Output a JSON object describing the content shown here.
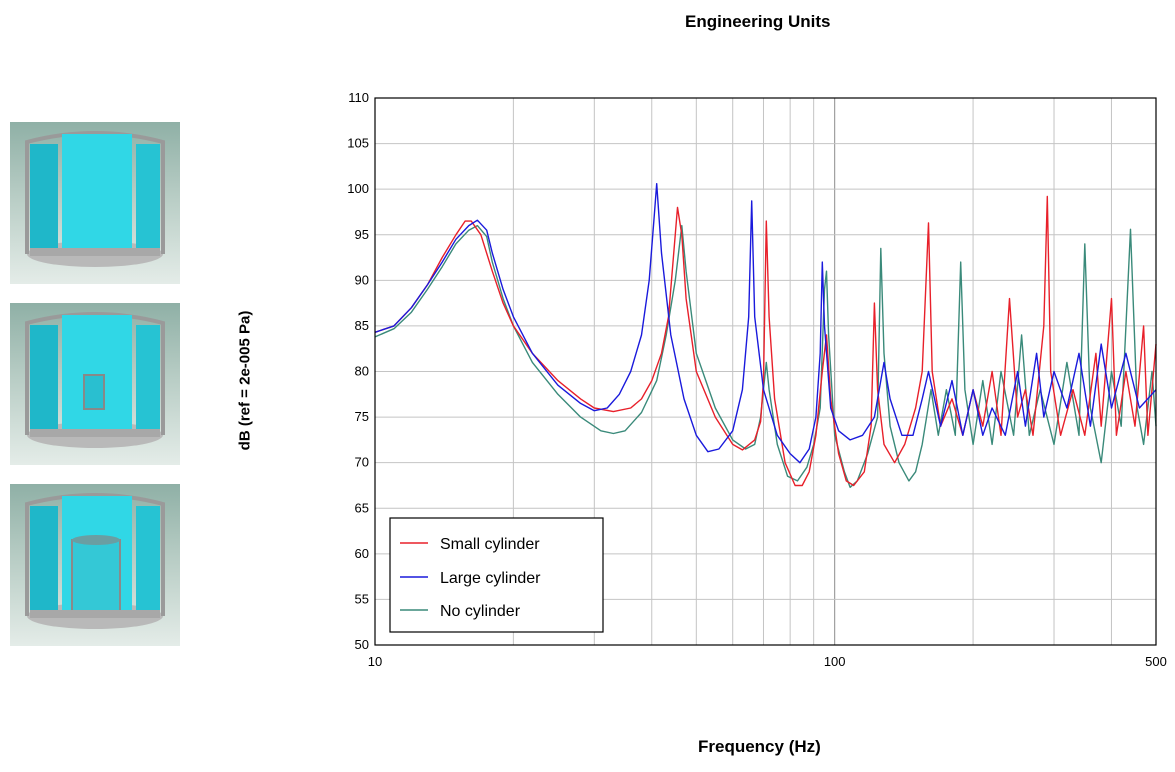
{
  "chart_data": {
    "type": "line",
    "title": "Engineering Units",
    "xlabel": "Frequency (Hz)",
    "ylabel": "dB (ref = 2e-005 Pa)",
    "xscale": "log",
    "xlim": [
      10,
      500
    ],
    "ylim": [
      50,
      110
    ],
    "x_tick_labels": [
      "10",
      "100",
      "500"
    ],
    "y_tick_labels": [
      "50",
      "55",
      "60",
      "65",
      "70",
      "75",
      "80",
      "85",
      "90",
      "95",
      "100",
      "105",
      "110"
    ],
    "grid": true,
    "legend_position": "bottom-left",
    "series": [
      {
        "name": "Small cylinder",
        "color": "#e8202a",
        "points": [
          [
            10,
            84.3
          ],
          [
            11,
            85
          ],
          [
            12,
            87
          ],
          [
            13,
            89.5
          ],
          [
            14,
            92.5
          ],
          [
            15,
            95
          ],
          [
            15.7,
            96.5
          ],
          [
            16.2,
            96.5
          ],
          [
            17,
            95
          ],
          [
            18,
            91
          ],
          [
            19,
            87.5
          ],
          [
            20,
            85
          ],
          [
            22,
            82
          ],
          [
            25,
            79
          ],
          [
            28,
            77
          ],
          [
            30,
            76
          ],
          [
            33,
            75.6
          ],
          [
            36,
            76
          ],
          [
            38,
            77
          ],
          [
            40,
            79
          ],
          [
            42,
            82
          ],
          [
            43.5,
            86
          ],
          [
            44.5,
            92
          ],
          [
            45.5,
            98
          ],
          [
            46.5,
            95
          ],
          [
            47.5,
            88
          ],
          [
            50,
            80
          ],
          [
            55,
            75
          ],
          [
            60,
            72
          ],
          [
            63,
            71.4
          ],
          [
            67,
            72.5
          ],
          [
            69,
            74.5
          ],
          [
            70,
            79
          ],
          [
            71,
            96.5
          ],
          [
            72,
            86
          ],
          [
            74,
            77
          ],
          [
            78,
            70
          ],
          [
            82,
            67.5
          ],
          [
            85,
            67.5
          ],
          [
            88,
            69
          ],
          [
            91,
            73
          ],
          [
            94,
            80
          ],
          [
            96,
            84
          ],
          [
            98,
            77
          ],
          [
            102,
            71
          ],
          [
            106,
            68
          ],
          [
            110,
            67.5
          ],
          [
            116,
            69
          ],
          [
            120,
            74
          ],
          [
            122,
            87.5
          ],
          [
            124,
            78
          ],
          [
            128,
            72
          ],
          [
            135,
            70
          ],
          [
            142,
            72
          ],
          [
            150,
            76
          ],
          [
            155,
            80
          ],
          [
            160,
            96.3
          ],
          [
            163,
            80
          ],
          [
            170,
            74
          ],
          [
            180,
            77
          ],
          [
            190,
            73
          ],
          [
            200,
            78
          ],
          [
            210,
            74
          ],
          [
            220,
            80
          ],
          [
            230,
            73
          ],
          [
            240,
            88
          ],
          [
            250,
            75
          ],
          [
            260,
            78
          ],
          [
            270,
            73
          ],
          [
            285,
            85
          ],
          [
            290,
            99.2
          ],
          [
            295,
            80
          ],
          [
            310,
            73
          ],
          [
            330,
            78
          ],
          [
            350,
            73
          ],
          [
            370,
            82
          ],
          [
            380,
            74
          ],
          [
            400,
            88
          ],
          [
            410,
            73
          ],
          [
            430,
            80
          ],
          [
            450,
            74
          ],
          [
            470,
            85
          ],
          [
            480,
            73
          ],
          [
            500,
            83
          ]
        ]
      },
      {
        "name": "Large cylinder",
        "color": "#1a1adc",
        "points": [
          [
            10,
            84.3
          ],
          [
            11,
            85
          ],
          [
            12,
            87
          ],
          [
            13,
            89.5
          ],
          [
            14,
            92
          ],
          [
            15,
            94.5
          ],
          [
            16,
            96
          ],
          [
            16.7,
            96.6
          ],
          [
            17.5,
            95.5
          ],
          [
            18,
            93
          ],
          [
            19,
            89
          ],
          [
            20,
            86
          ],
          [
            22,
            82
          ],
          [
            25,
            78.5
          ],
          [
            28,
            76.5
          ],
          [
            30,
            75.7
          ],
          [
            32,
            76
          ],
          [
            34,
            77.5
          ],
          [
            36,
            80
          ],
          [
            38,
            84
          ],
          [
            39.5,
            90
          ],
          [
            40.5,
            97
          ],
          [
            41,
            100.6
          ],
          [
            42,
            93
          ],
          [
            44,
            84
          ],
          [
            47,
            77
          ],
          [
            50,
            73
          ],
          [
            53,
            71.2
          ],
          [
            56,
            71.5
          ],
          [
            60,
            73.5
          ],
          [
            63,
            78
          ],
          [
            65,
            86
          ],
          [
            66,
            98.7
          ],
          [
            67,
            86
          ],
          [
            70,
            78
          ],
          [
            75,
            73
          ],
          [
            80,
            71
          ],
          [
            84,
            70
          ],
          [
            88,
            71.5
          ],
          [
            91,
            75
          ],
          [
            93,
            82
          ],
          [
            94,
            92
          ],
          [
            95,
            85
          ],
          [
            98,
            76
          ],
          [
            102,
            73.5
          ],
          [
            108,
            72.5
          ],
          [
            115,
            73
          ],
          [
            122,
            75
          ],
          [
            125,
            78
          ],
          [
            128,
            81
          ],
          [
            132,
            77
          ],
          [
            140,
            73
          ],
          [
            148,
            73
          ],
          [
            155,
            77
          ],
          [
            160,
            80
          ],
          [
            170,
            74
          ],
          [
            180,
            79
          ],
          [
            190,
            73
          ],
          [
            200,
            78
          ],
          [
            210,
            73
          ],
          [
            220,
            76
          ],
          [
            235,
            73
          ],
          [
            250,
            80
          ],
          [
            260,
            74
          ],
          [
            275,
            82
          ],
          [
            285,
            75
          ],
          [
            300,
            80
          ],
          [
            320,
            76
          ],
          [
            340,
            82
          ],
          [
            360,
            74
          ],
          [
            380,
            83
          ],
          [
            400,
            76
          ],
          [
            430,
            82
          ],
          [
            460,
            76
          ],
          [
            500,
            78
          ]
        ]
      },
      {
        "name": "No cylinder",
        "color": "#3a8a7a",
        "points": [
          [
            10,
            83.8
          ],
          [
            11,
            84.7
          ],
          [
            12,
            86.5
          ],
          [
            13,
            89
          ],
          [
            14,
            91.5
          ],
          [
            15,
            94
          ],
          [
            16,
            95.5
          ],
          [
            16.7,
            96
          ],
          [
            17.5,
            94.8
          ],
          [
            18,
            92
          ],
          [
            19,
            88
          ],
          [
            20,
            85
          ],
          [
            22,
            81
          ],
          [
            25,
            77.5
          ],
          [
            28,
            75
          ],
          [
            31,
            73.5
          ],
          [
            33,
            73.2
          ],
          [
            35,
            73.5
          ],
          [
            38,
            75.5
          ],
          [
            41,
            79
          ],
          [
            43,
            84
          ],
          [
            45,
            90
          ],
          [
            46.5,
            96
          ],
          [
            47.5,
            91
          ],
          [
            50,
            82
          ],
          [
            55,
            76
          ],
          [
            60,
            72.5
          ],
          [
            64,
            71.5
          ],
          [
            67,
            72
          ],
          [
            69,
            75
          ],
          [
            71,
            81
          ],
          [
            72,
            78
          ],
          [
            75,
            72
          ],
          [
            79,
            68.5
          ],
          [
            83,
            68
          ],
          [
            87,
            69.5
          ],
          [
            90,
            72
          ],
          [
            93,
            76
          ],
          [
            95,
            89
          ],
          [
            96,
            91
          ],
          [
            97,
            84
          ],
          [
            100,
            73
          ],
          [
            105,
            69
          ],
          [
            108,
            67.3
          ],
          [
            112,
            68
          ],
          [
            118,
            71
          ],
          [
            124,
            75
          ],
          [
            126,
            93.5
          ],
          [
            128,
            82
          ],
          [
            132,
            74
          ],
          [
            138,
            70
          ],
          [
            145,
            68
          ],
          [
            150,
            69
          ],
          [
            155,
            72
          ],
          [
            162,
            78
          ],
          [
            168,
            73
          ],
          [
            175,
            78
          ],
          [
            183,
            73
          ],
          [
            188,
            92
          ],
          [
            192,
            78
          ],
          [
            200,
            72
          ],
          [
            210,
            79
          ],
          [
            220,
            72
          ],
          [
            230,
            80
          ],
          [
            245,
            73
          ],
          [
            255,
            84
          ],
          [
            265,
            73
          ],
          [
            280,
            78
          ],
          [
            300,
            72
          ],
          [
            320,
            81
          ],
          [
            340,
            73
          ],
          [
            350,
            94
          ],
          [
            360,
            76
          ],
          [
            380,
            70
          ],
          [
            400,
            80
          ],
          [
            420,
            74
          ],
          [
            440,
            95.6
          ],
          [
            455,
            76
          ],
          [
            470,
            72
          ],
          [
            490,
            80
          ],
          [
            500,
            74
          ]
        ]
      }
    ]
  }
}
